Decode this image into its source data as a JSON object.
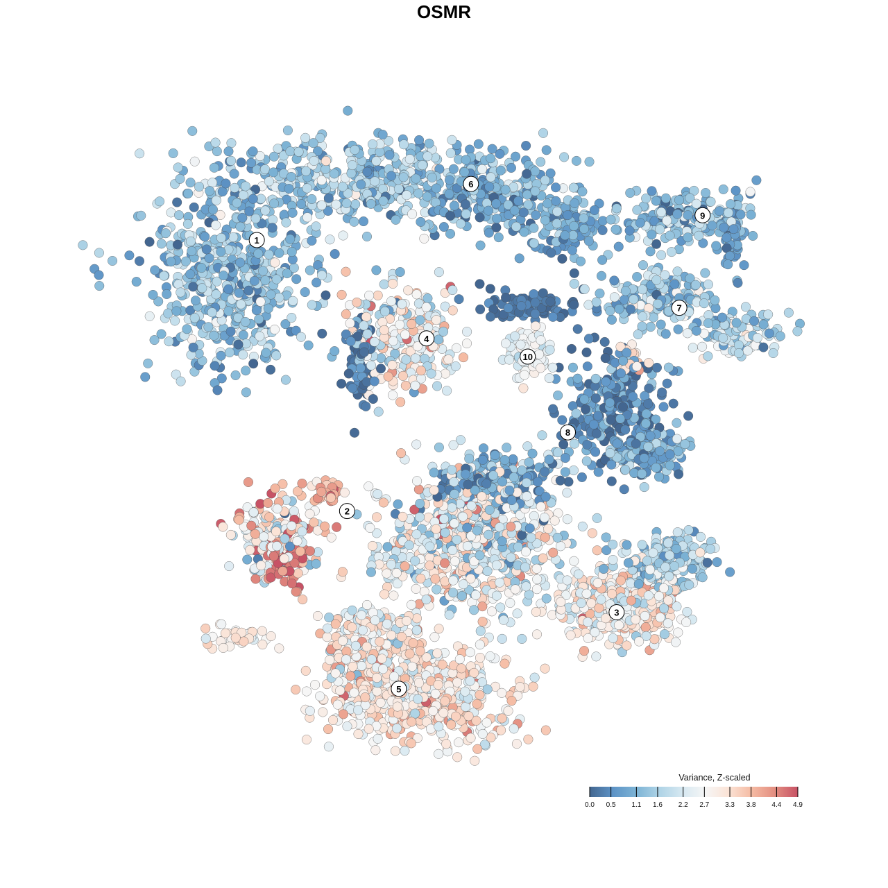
{
  "chart_data": {
    "type": "scatter",
    "title": "OSMR",
    "xlabel": "",
    "ylabel": "",
    "xlim": [
      -42,
      45
    ],
    "ylim": [
      -45,
      43
    ],
    "grid": false,
    "legend": {
      "title": "Variance, Z-scaled",
      "placement": "bottom-right",
      "range": [
        0.0,
        4.9
      ],
      "ticks": [
        "0.0",
        "0.5",
        "1.1",
        "1.6",
        "2.2",
        "2.7",
        "3.3",
        "3.8",
        "4.4",
        "4.9"
      ],
      "colors": [
        "#436690",
        "#5d93c6",
        "#7cb3d5",
        "#aed3e6",
        "#d6e8f1",
        "#f6f6f6",
        "#fbe3d6",
        "#f5bba3",
        "#e38e81",
        "#c75265"
      ]
    },
    "cluster_labels": [
      {
        "label": "1",
        "x": -25.7,
        "y": 28.0
      },
      {
        "label": "2",
        "x": -13.3,
        "y": -9.2
      },
      {
        "label": "3",
        "x": 23.7,
        "y": -23.1
      },
      {
        "label": "4",
        "x": -2.4,
        "y": 14.5
      },
      {
        "label": "5",
        "x": -6.2,
        "y": -33.6
      },
      {
        "label": "6",
        "x": 3.7,
        "y": 35.7
      },
      {
        "label": "7",
        "x": 32.3,
        "y": 18.7
      },
      {
        "label": "8",
        "x": 17.0,
        "y": 1.6
      },
      {
        "label": "9",
        "x": 35.5,
        "y": 31.4
      },
      {
        "label": "10",
        "x": 11.5,
        "y": 12.0
      }
    ],
    "point_groups": [
      {
        "cluster": "1",
        "x": -29.5,
        "y": 22.9,
        "sx": 10.5,
        "sy": 11.4,
        "n": 520,
        "mean": 1.3,
        "sd": 0.6
      },
      {
        "cluster": "1",
        "x": -11.4,
        "y": 36.2,
        "sx": 19.0,
        "sy": 5.2,
        "n": 480,
        "mean": 1.4,
        "sd": 0.6
      },
      {
        "cluster": "6",
        "x": 7.6,
        "y": 34.3,
        "sx": 8.6,
        "sy": 4.6,
        "n": 200,
        "mean": 0.9,
        "sd": 0.5
      },
      {
        "cluster": "6",
        "x": 17.1,
        "y": 29.5,
        "sx": 5.7,
        "sy": 3.8,
        "n": 110,
        "mean": 0.9,
        "sd": 0.5
      },
      {
        "cluster": "9",
        "x": 32.4,
        "y": 31.4,
        "sx": 8.6,
        "sy": 3.6,
        "n": 150,
        "mean": 1.2,
        "sd": 0.6
      },
      {
        "cluster": "9",
        "x": 39.5,
        "y": 28.6,
        "sx": 1.9,
        "sy": 4.8,
        "n": 50,
        "mean": 0.8,
        "sd": 0.4
      },
      {
        "cluster": "7",
        "x": 29.5,
        "y": 20.0,
        "sx": 7.6,
        "sy": 3.6,
        "n": 170,
        "mean": 1.5,
        "sd": 0.7
      },
      {
        "cluster": "7",
        "x": 40.0,
        "y": 15.2,
        "sx": 5.7,
        "sy": 2.8,
        "n": 110,
        "mean": 1.8,
        "sd": 0.7
      },
      {
        "cluster": "4",
        "x": -5.7,
        "y": 14.3,
        "sx": 6.8,
        "sy": 6.4,
        "n": 260,
        "mean": 2.6,
        "sd": 0.8
      },
      {
        "cluster": "4",
        "x": -11.4,
        "y": 11.4,
        "sx": 2.2,
        "sy": 4.8,
        "n": 70,
        "mean": 0.3,
        "sd": 0.3
      },
      {
        "cluster": "10",
        "x": 11.4,
        "y": 12.4,
        "sx": 3.0,
        "sy": 3.6,
        "n": 70,
        "mean": 2.5,
        "sd": 0.3
      },
      {
        "cluster": "10",
        "x": 11.4,
        "y": 19.0,
        "sx": 5.7,
        "sy": 1.8,
        "n": 90,
        "mean": 0.2,
        "sd": 0.2
      },
      {
        "cluster": "8",
        "x": 22.9,
        "y": 4.8,
        "sx": 7.0,
        "sy": 7.6,
        "n": 260,
        "mean": 0.5,
        "sd": 0.5
      },
      {
        "cluster": "8",
        "x": 27.6,
        "y": -1.0,
        "sx": 4.8,
        "sy": 2.8,
        "n": 140,
        "mean": 0.9,
        "sd": 0.5
      },
      {
        "cluster": "8",
        "x": 25.7,
        "y": 11.9,
        "sx": 1.9,
        "sy": 1.9,
        "n": 20,
        "mean": 3.3,
        "sd": 0.3
      },
      {
        "cluster": "2",
        "x": -22.9,
        "y": -13.3,
        "sx": 6.7,
        "sy": 5.4,
        "n": 180,
        "mean": 2.9,
        "sd": 1.2
      },
      {
        "cluster": "2",
        "x": -21.9,
        "y": -16.2,
        "sx": 2.6,
        "sy": 3.6,
        "n": 50,
        "mean": 4.6,
        "sd": 0.3
      },
      {
        "cluster": "2",
        "x": -16.2,
        "y": -6.7,
        "sx": 3.6,
        "sy": 1.3,
        "n": 35,
        "mean": 3.7,
        "sd": 0.5
      },
      {
        "cluster": "2",
        "x": -28.6,
        "y": -26.7,
        "sx": 4.6,
        "sy": 1.6,
        "n": 40,
        "mean": 3.0,
        "sd": 0.3
      },
      {
        "cluster": "3",
        "x": 3.8,
        "y": -13.3,
        "sx": 11.4,
        "sy": 8.6,
        "n": 650,
        "mean": 2.5,
        "sd": 0.9
      },
      {
        "cluster": "3",
        "x": 7.6,
        "y": -4.8,
        "sx": 7.6,
        "sy": 3.6,
        "n": 200,
        "mean": 0.9,
        "sd": 0.7
      },
      {
        "cluster": "3",
        "x": 23.8,
        "y": -21.9,
        "sx": 7.6,
        "sy": 5.0,
        "n": 380,
        "mean": 2.8,
        "sd": 0.6
      },
      {
        "cluster": "3",
        "x": 30.5,
        "y": -16.2,
        "sx": 5.7,
        "sy": 3.6,
        "n": 200,
        "mean": 1.5,
        "sd": 0.6
      },
      {
        "cluster": "5",
        "x": -3.8,
        "y": -34.3,
        "sx": 11.4,
        "sy": 6.4,
        "n": 520,
        "mean": 3.0,
        "sd": 0.6
      },
      {
        "cluster": "5",
        "x": -10.5,
        "y": -27.6,
        "sx": 5.7,
        "sy": 5.7,
        "n": 220,
        "mean": 2.9,
        "sd": 0.7
      }
    ]
  }
}
